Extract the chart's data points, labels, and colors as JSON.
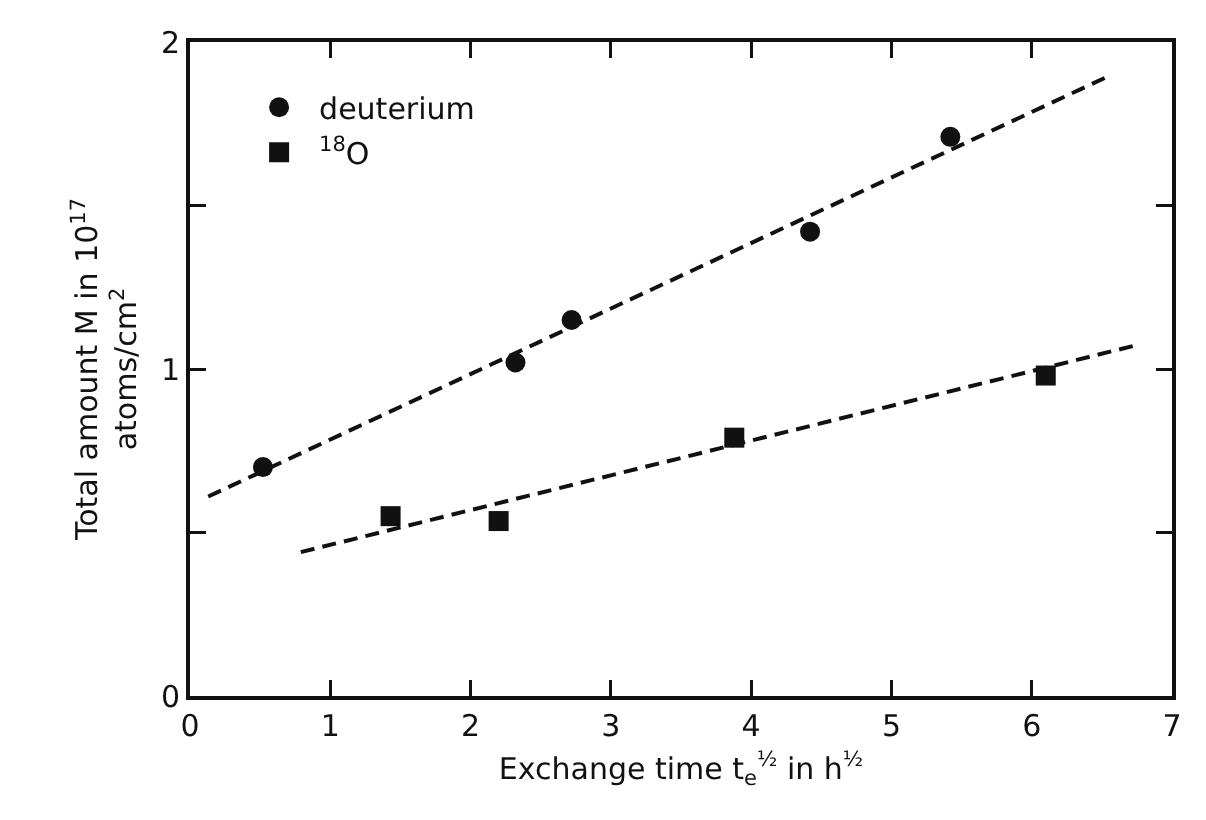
{
  "chart_data": {
    "type": "scatter",
    "xlabel": "Exchange time t$_{e}$$^{½}$ in h$^{½}$",
    "ylabel": "Total amount M in 10$^{17}$\natoms/cm$^{2}$",
    "xlim": [
      0,
      7
    ],
    "xticks": [
      0,
      1,
      2,
      3,
      4,
      5,
      6,
      7
    ],
    "ylim": [
      0,
      2
    ],
    "yticks": [
      0,
      {
        "value": 0.5,
        "label": null
      },
      1,
      {
        "value": 1.5,
        "label": null
      },
      2
    ],
    "grid": false,
    "legend": "top left",
    "series": [
      {
        "name": "deuterium",
        "color": "#111111",
        "marker": "circle",
        "x": [
          0.52,
          2.32,
          2.72,
          4.42,
          5.42
        ],
        "values": [
          0.7,
          1.02,
          1.15,
          1.42,
          1.71
        ]
      },
      {
        "name": "$^{18}$O",
        "color": "#111111",
        "marker": "square",
        "x": [
          1.43,
          2.2,
          3.88,
          6.1
        ],
        "values": [
          0.55,
          0.535,
          0.79,
          0.98
        ]
      },
      {
        "type": "line",
        "color": "#111111",
        "marker": "none",
        "line_style": "dashed",
        "x": [
          0.13,
          6.52
        ],
        "values": [
          0.61,
          1.89
        ]
      },
      {
        "type": "line",
        "color": "#111111",
        "marker": "none",
        "line_style": "dashed",
        "x": [
          0.79,
          6.72
        ],
        "values": [
          0.44,
          1.07
        ]
      }
    ]
  }
}
